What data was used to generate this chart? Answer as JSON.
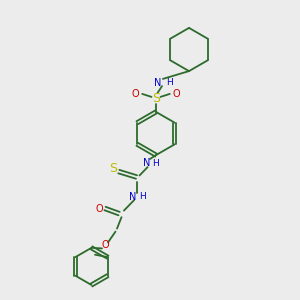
{
  "bg_color": "#ececec",
  "bond_color": "#2d6b2d",
  "N_color": "#0000cc",
  "O_color": "#cc0000",
  "S_color": "#bbbb00",
  "figsize": [
    3.0,
    3.0
  ],
  "dpi": 100,
  "xlim": [
    0,
    10
  ],
  "ylim": [
    0,
    10
  ]
}
